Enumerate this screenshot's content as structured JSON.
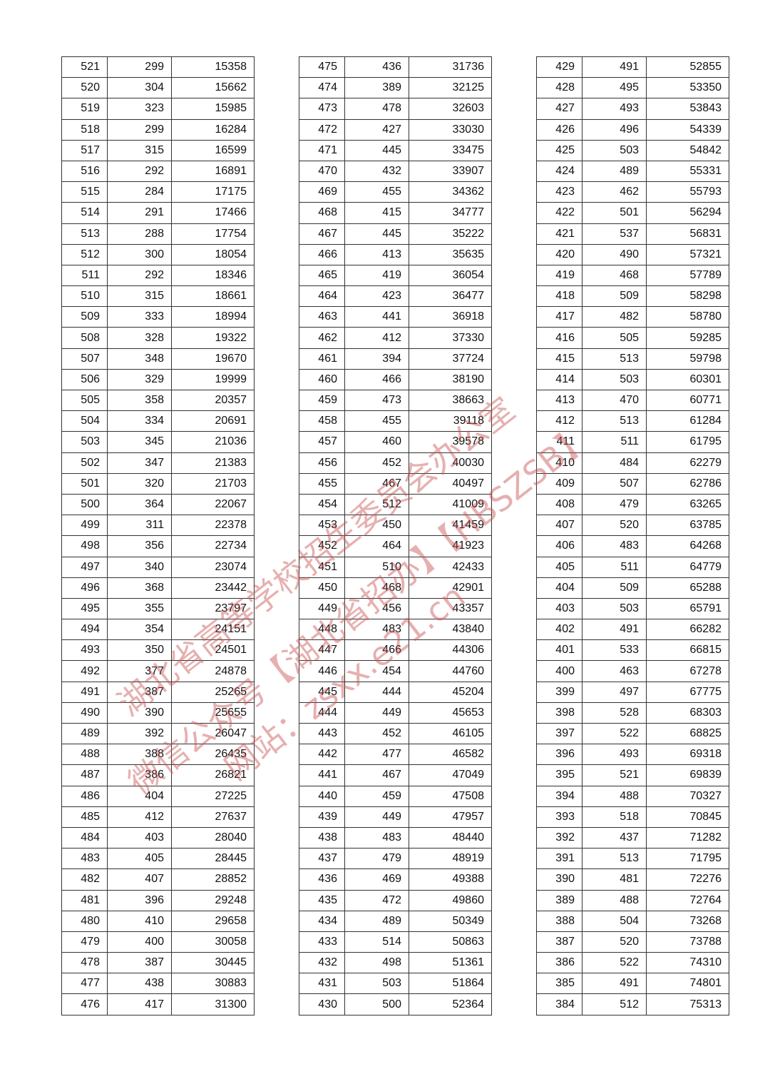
{
  "tables": [
    [
      [
        "521",
        "299",
        "15358"
      ],
      [
        "520",
        "304",
        "15662"
      ],
      [
        "519",
        "323",
        "15985"
      ],
      [
        "518",
        "299",
        "16284"
      ],
      [
        "517",
        "315",
        "16599"
      ],
      [
        "516",
        "292",
        "16891"
      ],
      [
        "515",
        "284",
        "17175"
      ],
      [
        "514",
        "291",
        "17466"
      ],
      [
        "513",
        "288",
        "17754"
      ],
      [
        "512",
        "300",
        "18054"
      ],
      [
        "511",
        "292",
        "18346"
      ],
      [
        "510",
        "315",
        "18661"
      ],
      [
        "509",
        "333",
        "18994"
      ],
      [
        "508",
        "328",
        "19322"
      ],
      [
        "507",
        "348",
        "19670"
      ],
      [
        "506",
        "329",
        "19999"
      ],
      [
        "505",
        "358",
        "20357"
      ],
      [
        "504",
        "334",
        "20691"
      ],
      [
        "503",
        "345",
        "21036"
      ],
      [
        "502",
        "347",
        "21383"
      ],
      [
        "501",
        "320",
        "21703"
      ],
      [
        "500",
        "364",
        "22067"
      ],
      [
        "499",
        "311",
        "22378"
      ],
      [
        "498",
        "356",
        "22734"
      ],
      [
        "497",
        "340",
        "23074"
      ],
      [
        "496",
        "368",
        "23442"
      ],
      [
        "495",
        "355",
        "23797"
      ],
      [
        "494",
        "354",
        "24151"
      ],
      [
        "493",
        "350",
        "24501"
      ],
      [
        "492",
        "377",
        "24878"
      ],
      [
        "491",
        "387",
        "25265"
      ],
      [
        "490",
        "390",
        "25655"
      ],
      [
        "489",
        "392",
        "26047"
      ],
      [
        "488",
        "388",
        "26435"
      ],
      [
        "487",
        "386",
        "26821"
      ],
      [
        "486",
        "404",
        "27225"
      ],
      [
        "485",
        "412",
        "27637"
      ],
      [
        "484",
        "403",
        "28040"
      ],
      [
        "483",
        "405",
        "28445"
      ],
      [
        "482",
        "407",
        "28852"
      ],
      [
        "481",
        "396",
        "29248"
      ],
      [
        "480",
        "410",
        "29658"
      ],
      [
        "479",
        "400",
        "30058"
      ],
      [
        "478",
        "387",
        "30445"
      ],
      [
        "477",
        "438",
        "30883"
      ],
      [
        "476",
        "417",
        "31300"
      ]
    ],
    [
      [
        "475",
        "436",
        "31736"
      ],
      [
        "474",
        "389",
        "32125"
      ],
      [
        "473",
        "478",
        "32603"
      ],
      [
        "472",
        "427",
        "33030"
      ],
      [
        "471",
        "445",
        "33475"
      ],
      [
        "470",
        "432",
        "33907"
      ],
      [
        "469",
        "455",
        "34362"
      ],
      [
        "468",
        "415",
        "34777"
      ],
      [
        "467",
        "445",
        "35222"
      ],
      [
        "466",
        "413",
        "35635"
      ],
      [
        "465",
        "419",
        "36054"
      ],
      [
        "464",
        "423",
        "36477"
      ],
      [
        "463",
        "441",
        "36918"
      ],
      [
        "462",
        "412",
        "37330"
      ],
      [
        "461",
        "394",
        "37724"
      ],
      [
        "460",
        "466",
        "38190"
      ],
      [
        "459",
        "473",
        "38663"
      ],
      [
        "458",
        "455",
        "39118"
      ],
      [
        "457",
        "460",
        "39578"
      ],
      [
        "456",
        "452",
        "40030"
      ],
      [
        "455",
        "467",
        "40497"
      ],
      [
        "454",
        "512",
        "41009"
      ],
      [
        "453",
        "450",
        "41459"
      ],
      [
        "452",
        "464",
        "41923"
      ],
      [
        "451",
        "510",
        "42433"
      ],
      [
        "450",
        "468",
        "42901"
      ],
      [
        "449",
        "456",
        "43357"
      ],
      [
        "448",
        "483",
        "43840"
      ],
      [
        "447",
        "466",
        "44306"
      ],
      [
        "446",
        "454",
        "44760"
      ],
      [
        "445",
        "444",
        "45204"
      ],
      [
        "444",
        "449",
        "45653"
      ],
      [
        "443",
        "452",
        "46105"
      ],
      [
        "442",
        "477",
        "46582"
      ],
      [
        "441",
        "467",
        "47049"
      ],
      [
        "440",
        "459",
        "47508"
      ],
      [
        "439",
        "449",
        "47957"
      ],
      [
        "438",
        "483",
        "48440"
      ],
      [
        "437",
        "479",
        "48919"
      ],
      [
        "436",
        "469",
        "49388"
      ],
      [
        "435",
        "472",
        "49860"
      ],
      [
        "434",
        "489",
        "50349"
      ],
      [
        "433",
        "514",
        "50863"
      ],
      [
        "432",
        "498",
        "51361"
      ],
      [
        "431",
        "503",
        "51864"
      ],
      [
        "430",
        "500",
        "52364"
      ]
    ],
    [
      [
        "429",
        "491",
        "52855"
      ],
      [
        "428",
        "495",
        "53350"
      ],
      [
        "427",
        "493",
        "53843"
      ],
      [
        "426",
        "496",
        "54339"
      ],
      [
        "425",
        "503",
        "54842"
      ],
      [
        "424",
        "489",
        "55331"
      ],
      [
        "423",
        "462",
        "55793"
      ],
      [
        "422",
        "501",
        "56294"
      ],
      [
        "421",
        "537",
        "56831"
      ],
      [
        "420",
        "490",
        "57321"
      ],
      [
        "419",
        "468",
        "57789"
      ],
      [
        "418",
        "509",
        "58298"
      ],
      [
        "417",
        "482",
        "58780"
      ],
      [
        "416",
        "505",
        "59285"
      ],
      [
        "415",
        "513",
        "59798"
      ],
      [
        "414",
        "503",
        "60301"
      ],
      [
        "413",
        "470",
        "60771"
      ],
      [
        "412",
        "513",
        "61284"
      ],
      [
        "411",
        "511",
        "61795"
      ],
      [
        "410",
        "484",
        "62279"
      ],
      [
        "409",
        "507",
        "62786"
      ],
      [
        "408",
        "479",
        "63265"
      ],
      [
        "407",
        "520",
        "63785"
      ],
      [
        "406",
        "483",
        "64268"
      ],
      [
        "405",
        "511",
        "64779"
      ],
      [
        "404",
        "509",
        "65288"
      ],
      [
        "403",
        "503",
        "65791"
      ],
      [
        "402",
        "491",
        "66282"
      ],
      [
        "401",
        "533",
        "66815"
      ],
      [
        "400",
        "463",
        "67278"
      ],
      [
        "399",
        "497",
        "67775"
      ],
      [
        "398",
        "528",
        "68303"
      ],
      [
        "397",
        "522",
        "68825"
      ],
      [
        "396",
        "493",
        "69318"
      ],
      [
        "395",
        "521",
        "69839"
      ],
      [
        "394",
        "488",
        "70327"
      ],
      [
        "393",
        "518",
        "70845"
      ],
      [
        "392",
        "437",
        "71282"
      ],
      [
        "391",
        "513",
        "71795"
      ],
      [
        "390",
        "481",
        "72276"
      ],
      [
        "389",
        "488",
        "72764"
      ],
      [
        "388",
        "504",
        "73268"
      ],
      [
        "387",
        "520",
        "73788"
      ],
      [
        "386",
        "522",
        "74310"
      ],
      [
        "385",
        "491",
        "74801"
      ],
      [
        "384",
        "512",
        "75313"
      ]
    ]
  ],
  "watermark": {
    "line1": "湖北省高等学校招生委员会办公室",
    "line2": "微信公众号【湖北省招办】【HBSZSB】",
    "line3": "网站：zsxx.e21.cn",
    "color": "#c85050"
  }
}
